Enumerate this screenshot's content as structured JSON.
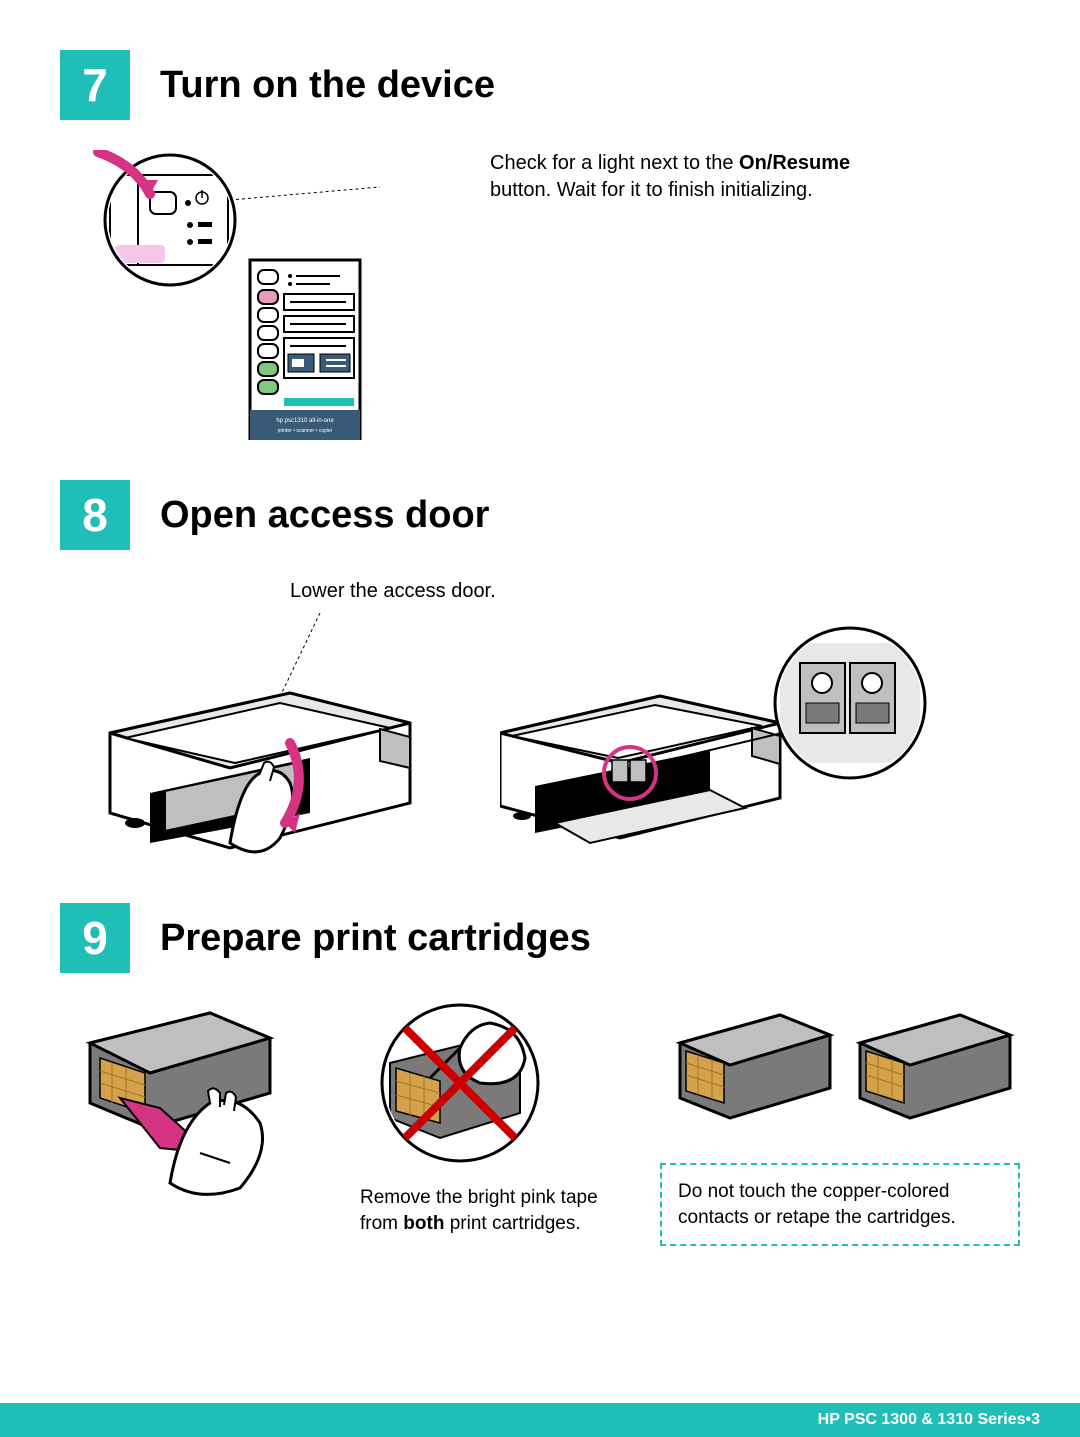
{
  "colors": {
    "accent": "#1fbfb8",
    "magenta": "#d63384",
    "pink_light": "#f5c6e8",
    "black": "#000000",
    "white": "#ffffff",
    "grey_light": "#e8e8e8",
    "grey_mid": "#bfbfbf",
    "grey_dark": "#7a7a7a",
    "copper": "#d4a24a",
    "copper_dark": "#a57520",
    "blue_panel": "#3a5a7a",
    "red": "#cc0000",
    "green_btn": "#7fc97f",
    "pink_btn": "#e89abf"
  },
  "steps": [
    {
      "number": "7",
      "title": "Turn on the device",
      "text_parts": [
        "Check for a light next to the ",
        "On/Resume",
        " button. Wait for it to finish initializing."
      ]
    },
    {
      "number": "8",
      "title": "Open access door",
      "label": "Lower the access door."
    },
    {
      "number": "9",
      "title": "Prepare print cartridges",
      "caption_parts": [
        "Remove the bright pink tape from ",
        "both",
        " print cartridges."
      ],
      "warning": "Do not touch the copper-colored contacts or retape the cartridges."
    }
  ],
  "panel_label_top": "hp psc1310 all-in-one",
  "panel_label_bottom": "printer • scanner • copier",
  "footer": {
    "product": "HP PSC 1300 & 1310 Series",
    "separator": " • ",
    "page": "3"
  }
}
